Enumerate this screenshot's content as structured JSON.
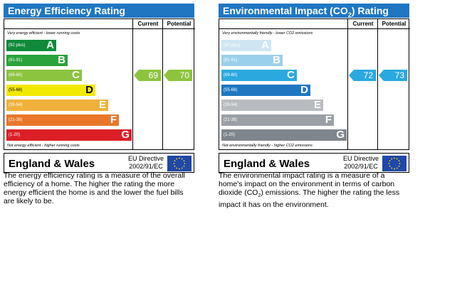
{
  "energy": {
    "title": "Energy Efficiency Rating",
    "current_label": "Current",
    "potential_label": "Potential",
    "top_note": "Very energy efficient - lower running costs",
    "bottom_note": "Not energy efficient - higher running costs",
    "bands": [
      {
        "range": "(92 plus)",
        "letter": "A",
        "color": "#0f8a3b"
      },
      {
        "range": "(81-91)",
        "letter": "B",
        "color": "#2aa33a"
      },
      {
        "range": "(69-80)",
        "letter": "C",
        "color": "#8cc43f"
      },
      {
        "range": "(55-68)",
        "letter": "D",
        "color": "#f2e900"
      },
      {
        "range": "(39-54)",
        "letter": "E",
        "color": "#f0b13b"
      },
      {
        "range": "(21-38)",
        "letter": "F",
        "color": "#e8772a"
      },
      {
        "range": "(1-20)",
        "letter": "G",
        "color": "#dc1f26"
      }
    ],
    "current": "69",
    "potential": "70",
    "current_color": "#8cc43f",
    "potential_color": "#8cc43f",
    "country": "England & Wales",
    "directive_line1": "EU Directive",
    "directive_line2": "2002/91/EC",
    "description": "The energy efficiency rating is a measure of the overall efficiency of a home. The higher the rating the more energy efficient the home is and the lower the fuel bills are likely to be."
  },
  "environment": {
    "title_pre": "Environmental Impact (CO",
    "title_sub": "2",
    "title_post": ") Rating",
    "current_label": "Current",
    "potential_label": "Potential",
    "top_note": "Very environmentally friendly - lower CO2 emissions",
    "bottom_note": "Not environmentally friendly - higher CO2 emissions",
    "bands": [
      {
        "range": "(92 plus)",
        "letter": "A",
        "color": "#cfe6f2"
      },
      {
        "range": "(81-91)",
        "letter": "B",
        "color": "#9bd0ea"
      },
      {
        "range": "(69-80)",
        "letter": "C",
        "color": "#2aa9df"
      },
      {
        "range": "(55-68)",
        "letter": "D",
        "color": "#1f77c2"
      },
      {
        "range": "(39-54)",
        "letter": "E",
        "color": "#b8bcc0"
      },
      {
        "range": "(21-38)",
        "letter": "F",
        "color": "#9aa0a5"
      },
      {
        "range": "(1-20)",
        "letter": "G",
        "color": "#7f868c"
      }
    ],
    "current": "72",
    "potential": "73",
    "current_color": "#2aa9df",
    "potential_color": "#2aa9df",
    "country": "England & Wales",
    "directive_line1": "EU Directive",
    "directive_line2": "2002/91/EC",
    "description_pre": "The environmental impact rating is a measure of a home's impact on the environment in terms of carbon dioxide (CO",
    "description_sub": "2",
    "description_post": ") emissions. The higher the rating the less impact it has on the environment."
  }
}
